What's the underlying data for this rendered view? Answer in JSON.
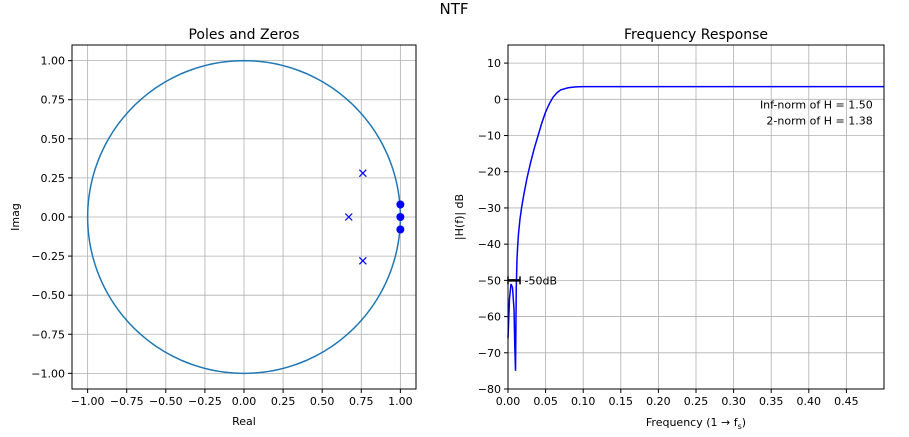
{
  "figure": {
    "suptitle": "NTF"
  },
  "chart_data": [
    {
      "type": "scatter",
      "title": "Poles and Zeros",
      "xlabel": "Real",
      "ylabel": "Imag",
      "xlim": [
        -1.1,
        1.1
      ],
      "ylim": [
        -1.1,
        1.1
      ],
      "grid": true,
      "xticks": [
        -1.0,
        -0.75,
        -0.5,
        -0.25,
        0.0,
        0.25,
        0.5,
        0.75,
        1.0
      ],
      "xtick_labels": [
        "−1.00",
        "−0.75",
        "−0.50",
        "−0.25",
        "0.00",
        "0.25",
        "0.50",
        "0.75",
        "1.00"
      ],
      "yticks": [
        1.0,
        0.75,
        0.5,
        0.25,
        0.0,
        -0.25,
        -0.5,
        -0.75,
        -1.0
      ],
      "ytick_labels": [
        "1.00",
        "0.75",
        "0.50",
        "0.25",
        "0.00",
        "−0.25",
        "−0.50",
        "−0.75",
        "−1.00"
      ],
      "unit_circle": {
        "radius": 1.0,
        "color": "#1f77b4"
      },
      "poles": [
        {
          "x": 0.76,
          "y": 0.28
        },
        {
          "x": 0.67,
          "y": 0.0
        },
        {
          "x": 0.76,
          "y": -0.28
        }
      ],
      "zeros": [
        {
          "x": 1.0,
          "y": 0.08
        },
        {
          "x": 1.0,
          "y": 0.0
        },
        {
          "x": 1.0,
          "y": -0.08
        }
      ],
      "marker_color": "#0000ff"
    },
    {
      "type": "line",
      "title": "Frequency Response",
      "xlabel": "Frequency (1 → f",
      "xlabel_sub": "s",
      "xlabel_close": ")",
      "ylabel": "|H(f)| dB",
      "xlim": [
        0.0,
        0.5
      ],
      "ylim": [
        -80,
        15
      ],
      "grid": true,
      "xticks": [
        0.0,
        0.05,
        0.1,
        0.15,
        0.2,
        0.25,
        0.3,
        0.35,
        0.4,
        0.45
      ],
      "xtick_labels": [
        "0.00",
        "0.05",
        "0.10",
        "0.15",
        "0.20",
        "0.25",
        "0.30",
        "0.35",
        "0.40",
        "0.45"
      ],
      "yticks": [
        10,
        0,
        -10,
        -20,
        -30,
        -40,
        -50,
        -60,
        -70,
        -80
      ],
      "ytick_labels": [
        "10",
        "0",
        "−10",
        "−20",
        "−30",
        "−40",
        "−50",
        "−60",
        "−70",
        "−80"
      ],
      "series": [
        {
          "color": "#0000ff",
          "x": [
            0.0,
            0.002,
            0.004,
            0.006,
            0.008,
            0.009,
            0.01,
            0.011,
            0.012,
            0.013,
            0.014,
            0.016,
            0.018,
            0.02,
            0.025,
            0.03,
            0.035,
            0.04,
            0.045,
            0.05,
            0.055,
            0.06,
            0.065,
            0.07,
            0.08,
            0.09,
            0.1,
            0.12,
            0.15,
            0.2,
            0.3,
            0.4,
            0.5
          ],
          "y": [
            -66,
            -55,
            -51,
            -52,
            -58,
            -68,
            -75,
            -52,
            -44,
            -40,
            -37,
            -33,
            -30,
            -27.5,
            -22,
            -17.5,
            -13.5,
            -10,
            -6.5,
            -3.5,
            -1.2,
            0.6,
            1.8,
            2.6,
            3.2,
            3.45,
            3.52,
            3.52,
            3.52,
            3.52,
            3.52,
            3.52,
            3.52
          ]
        }
      ],
      "annotations": [
        {
          "text": "Inf-norm of H = 1.50",
          "x": 0.485,
          "y": -1.5,
          "align": "right"
        },
        {
          "text": "2-norm of H = 1.38",
          "x": 0.485,
          "y": -5.8,
          "align": "right"
        }
      ],
      "marker_band": {
        "x0": 0.0,
        "x1": 0.016,
        "y": -50,
        "label": "-50dB",
        "label_x": 0.022
      }
    }
  ]
}
